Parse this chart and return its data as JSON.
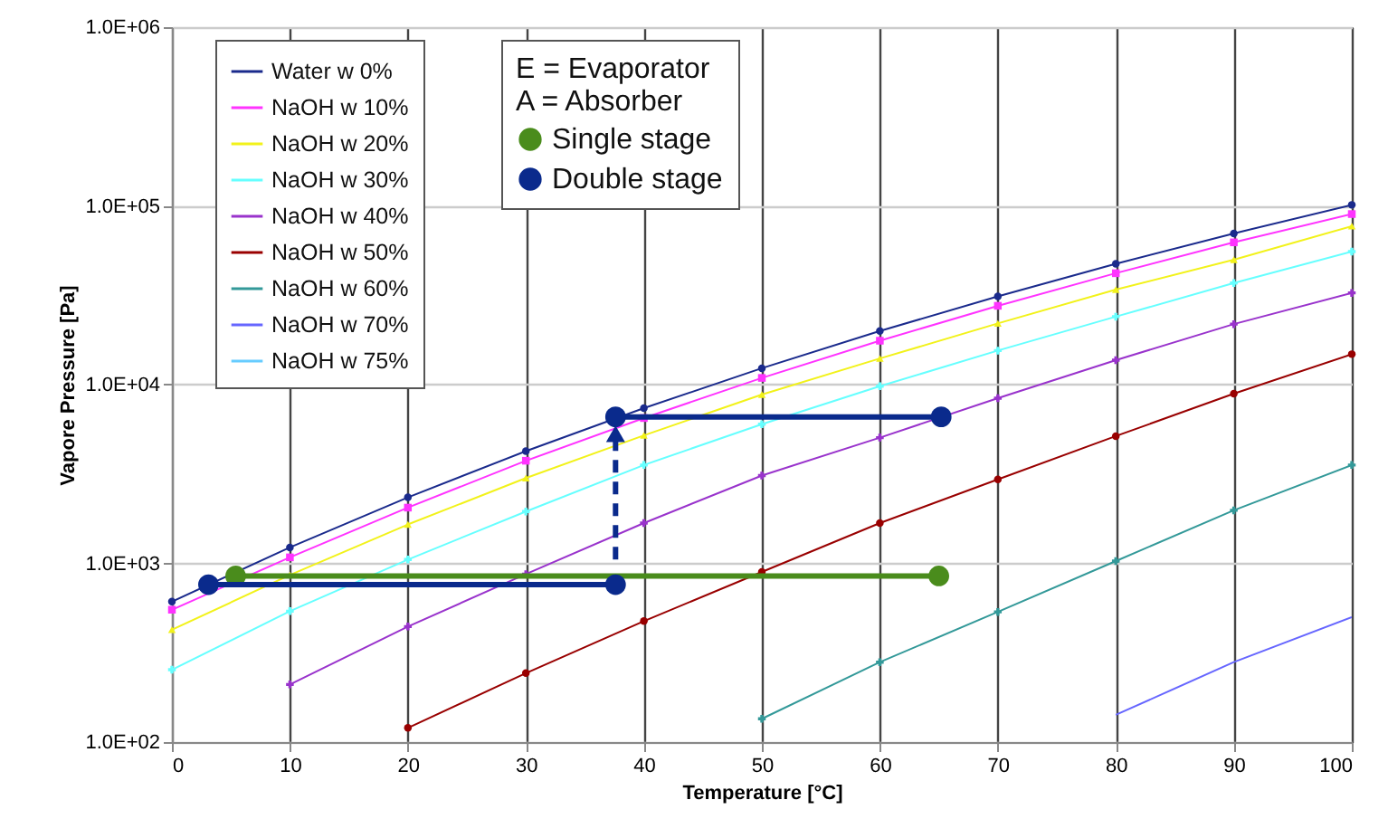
{
  "chart_data": {
    "type": "line",
    "xlabel": "Temperature [°C]",
    "ylabel": "Vapore Pressure [Pa]",
    "log": "y",
    "grid": true,
    "legend": "top left",
    "x": [
      0,
      10,
      20,
      30,
      40,
      50,
      60,
      70,
      80,
      90,
      100
    ],
    "xlim": [
      0,
      100
    ],
    "xticks": [
      0,
      10,
      20,
      30,
      40,
      50,
      60,
      70,
      80,
      90,
      100
    ],
    "ylim": [
      100,
      1000000
    ],
    "yticks": [
      {
        "value": 100,
        "label": "1.0E+02"
      },
      {
        "value": 1000,
        "label": "1.0E+03"
      },
      {
        "value": 10000,
        "label": "1.0E+04"
      },
      {
        "value": 100000,
        "label": "1.0E+05"
      },
      {
        "value": 1000000,
        "label": "1.0E+06"
      }
    ],
    "annotations": [
      "E = Evaporator",
      "A = Absorber"
    ],
    "series": [
      {
        "name": "Water w 0%",
        "color": "#1a2a8c",
        "marker": "circle",
        "values": [
          611,
          1228,
          2339,
          4246,
          7384,
          12350,
          19940,
          31190,
          47390,
          70140,
          101325
        ]
      },
      {
        "name": "NaOH w 10%",
        "color": "#ff33ff",
        "marker": "square",
        "values": [
          550,
          1080,
          2050,
          3750,
          6500,
          10900,
          17600,
          27600,
          42000,
          62500,
          90000
        ]
      },
      {
        "name": "NaOH w 20%",
        "color": "#f2f21a",
        "marker": "triangle",
        "values": [
          425,
          860,
          1650,
          3000,
          5200,
          8800,
          14000,
          22000,
          34000,
          50000,
          77000
        ]
      },
      {
        "name": "NaOH w 30%",
        "color": "#66ffff",
        "marker": "cross",
        "values": [
          254,
          540,
          1050,
          1950,
          3550,
          6000,
          9800,
          15500,
          24000,
          37000,
          55500
        ]
      },
      {
        "name": "NaOH w 40%",
        "color": "#9933cc",
        "marker": "cross",
        "values": [
          null,
          210,
          443,
          870,
          1680,
          3100,
          5050,
          8400,
          13700,
          21800,
          32600
        ]
      },
      {
        "name": "NaOH w 50%",
        "color": "#990000",
        "marker": "circle",
        "values": [
          null,
          null,
          120,
          243,
          475,
          895,
          1680,
          2950,
          5150,
          8900,
          14800
        ]
      },
      {
        "name": "NaOH w 60%",
        "color": "#339999",
        "marker": "cross",
        "values": [
          null,
          null,
          null,
          null,
          null,
          135,
          280,
          535,
          1030,
          1980,
          3550
        ]
      },
      {
        "name": "NaOH w 70%",
        "color": "#6666ff",
        "marker": "none",
        "values": [
          null,
          null,
          null,
          null,
          null,
          null,
          null,
          null,
          142,
          280,
          500
        ]
      },
      {
        "name": "NaOH w 75%",
        "color": "#66ccff",
        "marker": "none",
        "values": [
          null,
          null,
          null,
          null,
          null,
          null,
          null,
          null,
          null,
          null,
          null
        ]
      },
      {
        "name": "Single stage",
        "color": "#4a8c1c",
        "marker": "circle",
        "x": [
          5.4,
          65
        ],
        "values": [
          850,
          850
        ]
      },
      {
        "name": "Double stage",
        "color": "#0a2a8c",
        "marker": "circle",
        "x": [
          3.1,
          37.6
        ],
        "values": [
          760,
          760
        ]
      },
      {
        "color": "#0a2a8c",
        "marker": "circle",
        "x": [
          37.6,
          65.2
        ],
        "values": [
          6600,
          6600
        ]
      },
      {
        "color": "#0a2a8c",
        "marker": "triangle",
        "line_style": "dashed",
        "x": [
          37.6,
          37.6
        ],
        "values": [
          1050,
          5300
        ]
      }
    ]
  }
}
